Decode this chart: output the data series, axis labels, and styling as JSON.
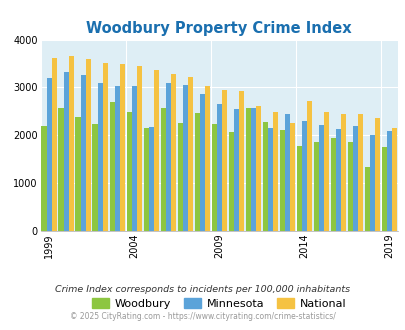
{
  "title": "Woodbury Property Crime Index",
  "title_color": "#1a6faf",
  "years": [
    1999,
    2000,
    2001,
    2002,
    2003,
    2004,
    2005,
    2006,
    2007,
    2008,
    2009,
    2010,
    2011,
    2012,
    2013,
    2014,
    2015,
    2016,
    2017,
    2018,
    2019
  ],
  "woodbury": [
    2200,
    2570,
    2390,
    2240,
    2700,
    2480,
    2160,
    2580,
    2250,
    2470,
    2240,
    2070,
    2570,
    2280,
    2120,
    1780,
    1870,
    1950,
    1870,
    1340,
    1750
  ],
  "minnesota": [
    3200,
    3330,
    3270,
    3100,
    3040,
    3040,
    2170,
    3090,
    3050,
    2870,
    2650,
    2560,
    2580,
    2150,
    2440,
    2290,
    2220,
    2130,
    2200,
    2000,
    2080
  ],
  "national": [
    3620,
    3660,
    3590,
    3510,
    3500,
    3440,
    3360,
    3290,
    3220,
    3040,
    2950,
    2930,
    2610,
    2480,
    2250,
    2710,
    2490,
    2450,
    2450,
    2370,
    2160
  ],
  "woodbury_color": "#8dc641",
  "minnesota_color": "#5ba3d9",
  "national_color": "#f5c242",
  "plot_bg_color": "#deeef5",
  "fig_bg_color": "#ffffff",
  "ylabel_ticks": [
    0,
    1000,
    2000,
    3000,
    4000
  ],
  "ylim": [
    0,
    4000
  ],
  "tick_years": [
    1999,
    2004,
    2009,
    2014,
    2019
  ],
  "footnote1": "Crime Index corresponds to incidents per 100,000 inhabitants",
  "footnote2": "© 2025 CityRating.com - https://www.cityrating.com/crime-statistics/",
  "legend_labels": [
    "Woodbury",
    "Minnesota",
    "National"
  ]
}
